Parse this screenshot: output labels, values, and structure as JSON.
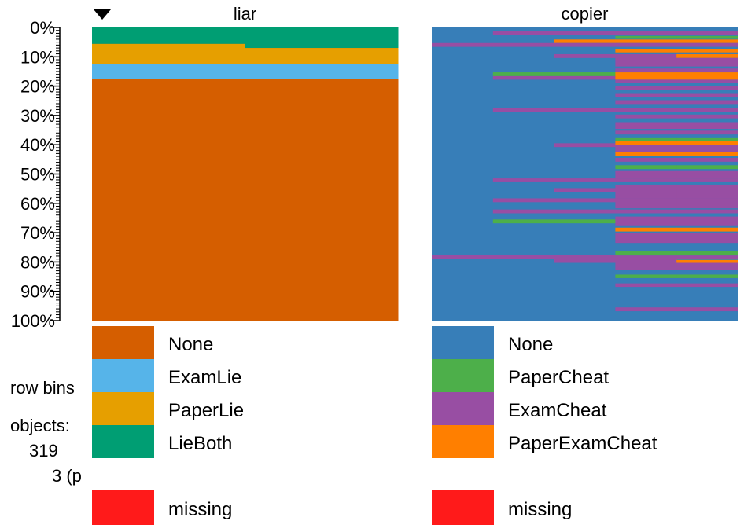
{
  "chart_data": {
    "type": "heatmap",
    "sort_indicator": "triangle-down-icon",
    "y_ticks": [
      "0%",
      "10%",
      "20%",
      "30%",
      "40%",
      "50%",
      "60%",
      "70%",
      "80%",
      "90%",
      "100%"
    ],
    "side": {
      "row_bins_label": "row bins",
      "objects_label": "objects:",
      "objects_value": "319",
      "bins_value": "3 (p"
    },
    "panels": [
      {
        "title": "liar",
        "legend": [
          {
            "label": "None",
            "color": "#D55E00"
          },
          {
            "label": "ExamLie",
            "color": "#56B4E9"
          },
          {
            "label": "PaperLie",
            "color": "#E69F00"
          },
          {
            "label": "LieBoth",
            "color": "#009E73"
          }
        ],
        "missing": {
          "label": "missing",
          "color": "#FF1A1A"
        },
        "columns": [
          {
            "segments": [
              [
                "LieBoth",
                0,
                5.6
              ],
              [
                "PaperLie",
                5.6,
                12.6
              ],
              [
                "ExamLie",
                12.6,
                17.6
              ],
              [
                "None",
                17.6,
                100
              ]
            ]
          },
          {
            "segments": [
              [
                "LieBoth",
                0,
                7.0
              ],
              [
                "PaperLie",
                7.0,
                12.6
              ],
              [
                "ExamLie",
                12.6,
                17.6
              ],
              [
                "None",
                17.6,
                100
              ]
            ]
          }
        ]
      },
      {
        "title": "copier",
        "legend": [
          {
            "label": "None",
            "color": "#377EB8"
          },
          {
            "label": "PaperCheat",
            "color": "#4DAF4A"
          },
          {
            "label": "ExamCheat",
            "color": "#984EA3"
          },
          {
            "label": "PaperExamCheat",
            "color": "#FF7F00"
          }
        ],
        "missing": {
          "label": "missing",
          "color": "#FF1A1A"
        },
        "columns": [
          {
            "segments": [
              [
                "ExamCheat",
                5.3,
                6.6
              ],
              [
                "ExamCheat",
                77.5,
                79.0
              ]
            ]
          },
          {
            "segments": [
              [
                "ExamCheat",
                1.3,
                2.6
              ],
              [
                "ExamCheat",
                5.3,
                6.6
              ],
              [
                "PaperCheat",
                15.3,
                16.6
              ],
              [
                "ExamCheat",
                16.6,
                17.8
              ],
              [
                "ExamCheat",
                27.5,
                28.8
              ],
              [
                "ExamCheat",
                51.5,
                52.8
              ],
              [
                "ExamCheat",
                58.3,
                59.6
              ],
              [
                "ExamCheat",
                62.1,
                63.4
              ],
              [
                "PaperCheat",
                65.5,
                66.8
              ],
              [
                "ExamCheat",
                77.5,
                79.0
              ]
            ]
          },
          {
            "segments": [
              [
                "ExamCheat",
                1.3,
                2.6
              ],
              [
                "PaperExamCheat",
                4.1,
                5.3
              ],
              [
                "ExamCheat",
                5.3,
                6.6
              ],
              [
                "ExamCheat",
                9.1,
                10.4
              ],
              [
                "PaperCheat",
                15.3,
                16.6
              ],
              [
                "ExamCheat",
                16.6,
                17.8
              ],
              [
                "ExamCheat",
                27.5,
                28.8
              ],
              [
                "ExamCheat",
                39.5,
                40.8
              ],
              [
                "ExamCheat",
                51.5,
                52.8
              ],
              [
                "ExamCheat",
                54.8,
                56.1
              ],
              [
                "ExamCheat",
                58.3,
                59.6
              ],
              [
                "ExamCheat",
                62.1,
                63.4
              ],
              [
                "PaperCheat",
                65.5,
                66.8
              ],
              [
                "ExamCheat",
                77.5,
                79.0
              ],
              [
                "ExamCheat",
                79.0,
                80.3
              ]
            ]
          },
          {
            "segments": [
              [
                "ExamCheat",
                1.3,
                2.6
              ],
              [
                "PaperCheat",
                2.9,
                3.9
              ],
              [
                "PaperExamCheat",
                4.1,
                5.3
              ],
              [
                "ExamCheat",
                5.3,
                6.6
              ],
              [
                "PaperExamCheat",
                7.3,
                8.5
              ],
              [
                "ExamCheat",
                9.1,
                13.3
              ],
              [
                "ExamCheat",
                14.0,
                15.3
              ],
              [
                "PaperExamCheat",
                15.3,
                17.8
              ],
              [
                "ExamCheat",
                17.8,
                19.0
              ],
              [
                "ExamCheat",
                20.0,
                21.3
              ],
              [
                "ExamCheat",
                22.4,
                23.7
              ],
              [
                "ExamCheat",
                24.8,
                26.1
              ],
              [
                "ExamCheat",
                27.5,
                28.8
              ],
              [
                "ExamCheat",
                29.7,
                31.0
              ],
              [
                "ExamCheat",
                32.3,
                34.6
              ],
              [
                "ExamCheat",
                35.2,
                36.5
              ],
              [
                "PaperCheat",
                37.5,
                38.8
              ],
              [
                "PaperExamCheat",
                38.8,
                40.0
              ],
              [
                "ExamCheat",
                40.0,
                42.5
              ],
              [
                "PaperExamCheat",
                42.5,
                43.8
              ],
              [
                "ExamCheat",
                44.5,
                45.8
              ],
              [
                "PaperCheat",
                47.0,
                48.3
              ],
              [
                "ExamCheat",
                49.0,
                51.5
              ],
              [
                "ExamCheat",
                51.5,
                52.8
              ],
              [
                "ExamCheat",
                53.6,
                58.3
              ],
              [
                "ExamCheat",
                58.3,
                61.7
              ],
              [
                "ExamCheat",
                62.1,
                63.4
              ],
              [
                "ExamCheat",
                64.5,
                67.5
              ],
              [
                "PaperExamCheat",
                68.3,
                69.6
              ],
              [
                "ExamCheat",
                70.0,
                73.5
              ],
              [
                "PaperCheat",
                76.3,
                77.8
              ],
              [
                "ExamCheat",
                77.8,
                82.8
              ],
              [
                "PaperCheat",
                84.3,
                85.5
              ],
              [
                "ExamCheat",
                87.3,
                88.5
              ],
              [
                "ExamCheat",
                95.5,
                96.8
              ]
            ]
          },
          {
            "segments": [
              [
                "ExamCheat",
                1.3,
                2.6
              ],
              [
                "PaperCheat",
                2.9,
                3.9
              ],
              [
                "PaperExamCheat",
                4.1,
                5.3
              ],
              [
                "ExamCheat",
                5.3,
                6.6
              ],
              [
                "PaperExamCheat",
                7.3,
                8.5
              ],
              [
                "PaperExamCheat",
                9.1,
                10.4
              ],
              [
                "ExamCheat",
                10.4,
                13.3
              ],
              [
                "ExamCheat",
                14.0,
                15.3
              ],
              [
                "PaperExamCheat",
                15.3,
                17.8
              ],
              [
                "ExamCheat",
                17.8,
                19.0
              ],
              [
                "ExamCheat",
                20.0,
                21.3
              ],
              [
                "ExamCheat",
                22.4,
                23.7
              ],
              [
                "ExamCheat",
                24.8,
                26.1
              ],
              [
                "ExamCheat",
                27.5,
                28.8
              ],
              [
                "ExamCheat",
                29.7,
                31.0
              ],
              [
                "ExamCheat",
                32.3,
                34.6
              ],
              [
                "ExamCheat",
                35.2,
                36.5
              ],
              [
                "PaperCheat",
                37.5,
                38.8
              ],
              [
                "PaperExamCheat",
                38.8,
                40.0
              ],
              [
                "ExamCheat",
                40.0,
                42.5
              ],
              [
                "PaperExamCheat",
                42.5,
                43.8
              ],
              [
                "ExamCheat",
                44.5,
                45.8
              ],
              [
                "PaperCheat",
                47.0,
                48.3
              ],
              [
                "ExamCheat",
                49.0,
                51.5
              ],
              [
                "ExamCheat",
                51.5,
                52.8
              ],
              [
                "ExamCheat",
                53.6,
                58.3
              ],
              [
                "ExamCheat",
                58.3,
                61.7
              ],
              [
                "ExamCheat",
                62.1,
                63.4
              ],
              [
                "ExamCheat",
                64.5,
                67.5
              ],
              [
                "PaperExamCheat",
                68.3,
                69.6
              ],
              [
                "ExamCheat",
                70.0,
                73.5
              ],
              [
                "PaperCheat",
                76.3,
                77.8
              ],
              [
                "ExamCheat",
                77.8,
                79.0
              ],
              [
                "PaperExamCheat",
                79.3,
                80.3
              ],
              [
                "ExamCheat",
                80.3,
                82.8
              ],
              [
                "PaperCheat",
                84.3,
                85.5
              ],
              [
                "ExamCheat",
                87.3,
                88.5
              ],
              [
                "ExamCheat",
                95.5,
                96.8
              ]
            ]
          }
        ]
      }
    ]
  }
}
